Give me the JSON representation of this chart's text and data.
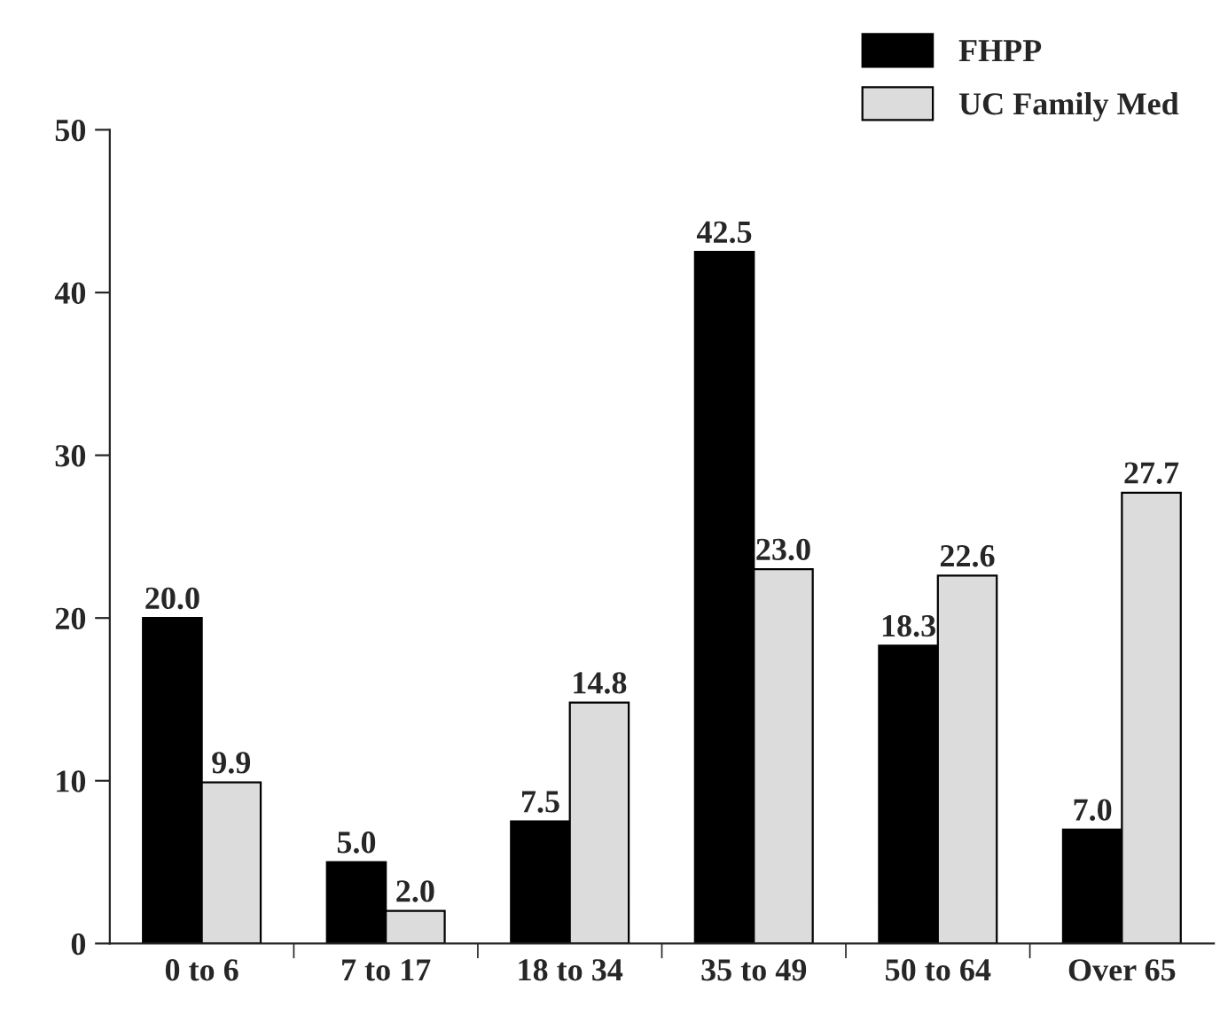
{
  "chart_data": {
    "type": "bar",
    "categories": [
      "0 to 6",
      "7 to 17",
      "18 to 34",
      "35 to 49",
      "50 to 64",
      "Over 65"
    ],
    "series": [
      {
        "name": "FHPP",
        "color": "#000000",
        "values": [
          20.0,
          5.0,
          7.5,
          42.5,
          18.3,
          7.0
        ],
        "value_labels": [
          "20.0",
          "5.0",
          "7.5",
          "42.5",
          "18.3",
          "7.0"
        ]
      },
      {
        "name": "UC Family Med",
        "color": "#dcdcdc",
        "values": [
          9.9,
          2.0,
          14.8,
          23.0,
          22.6,
          27.7
        ],
        "value_labels": [
          "9.9",
          "2.0",
          "14.8",
          "23.0",
          "22.6",
          "27.7"
        ]
      }
    ],
    "ylim": [
      0,
      50
    ],
    "yticks": [
      0,
      10,
      20,
      30,
      40,
      50
    ],
    "legend": "top right",
    "grid": false
  }
}
